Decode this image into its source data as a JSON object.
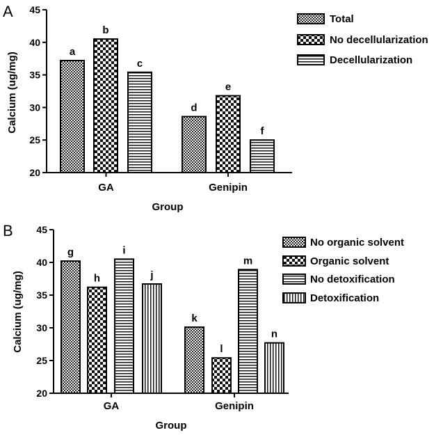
{
  "chart_data": [
    {
      "type": "bar",
      "panel_label": "A",
      "xlabel": "Group",
      "ylabel": "Calcium (ug/mg)",
      "ylim": [
        20,
        45
      ],
      "yticks": [
        20,
        25,
        30,
        35,
        40,
        45
      ],
      "categories": [
        "GA",
        "Genipin"
      ],
      "series": [
        {
          "name": "Total",
          "pattern": "fine-crosshatch",
          "values": [
            37.2,
            28.6
          ],
          "letters": [
            "a",
            "d"
          ]
        },
        {
          "name": "No decellularization",
          "pattern": "checker",
          "values": [
            40.5,
            31.8
          ],
          "letters": [
            "b",
            "e"
          ]
        },
        {
          "name": "Decellularization",
          "pattern": "horizontal-lines",
          "values": [
            35.4,
            25.0
          ],
          "letters": [
            "c",
            "f"
          ]
        }
      ],
      "legend_position": "top-right",
      "grid": false
    },
    {
      "type": "bar",
      "panel_label": "B",
      "xlabel": "Group",
      "ylabel": "Calcium (ug/mg)",
      "ylim": [
        20,
        45
      ],
      "yticks": [
        20,
        25,
        30,
        35,
        40,
        45
      ],
      "categories": [
        "GA",
        "Genipin"
      ],
      "series": [
        {
          "name": "No organic solvent",
          "pattern": "fine-crosshatch",
          "values": [
            40.2,
            30.1
          ],
          "letters": [
            "g",
            "k"
          ]
        },
        {
          "name": "Organic solvent",
          "pattern": "checker",
          "values": [
            36.2,
            25.4
          ],
          "letters": [
            "h",
            "l"
          ]
        },
        {
          "name": "No detoxification",
          "pattern": "horizontal-lines",
          "values": [
            40.5,
            38.9
          ],
          "letters": [
            "i",
            "m"
          ]
        },
        {
          "name": "Detoxification",
          "pattern": "vertical-lines",
          "values": [
            36.7,
            27.7
          ],
          "letters": [
            "j",
            "n"
          ]
        }
      ],
      "legend_position": "top-right",
      "grid": false
    }
  ]
}
